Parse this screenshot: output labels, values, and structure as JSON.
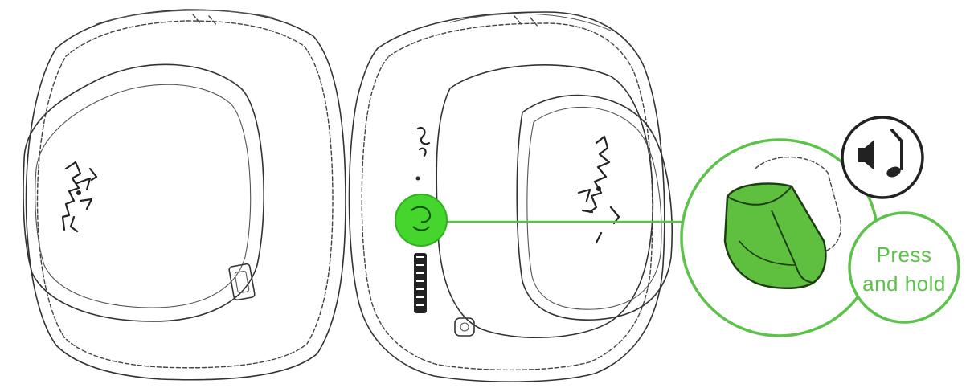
{
  "callout": {
    "instruction_line1": "Press",
    "instruction_line2": "and hold"
  },
  "colors": {
    "accent": "#44d62c",
    "accent_dark": "#2f8f22",
    "button_fill": "#5fbf3f",
    "outline": "#333333"
  },
  "icons": {
    "left_earcup_logo": "razer-logo-icon",
    "right_earcup_logo": "razer-logo-icon",
    "highlighted_button": "mic-mute-button-icon",
    "mode_indicator": "speaker-music-note-icon"
  }
}
